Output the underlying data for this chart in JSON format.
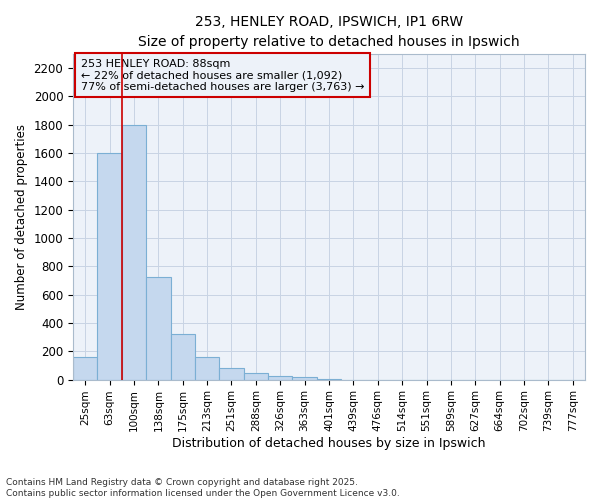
{
  "title_line1": "253, HENLEY ROAD, IPSWICH, IP1 6RW",
  "title_line2": "Size of property relative to detached houses in Ipswich",
  "xlabel": "Distribution of detached houses by size in Ipswich",
  "ylabel": "Number of detached properties",
  "categories": [
    "25sqm",
    "63sqm",
    "100sqm",
    "138sqm",
    "175sqm",
    "213sqm",
    "251sqm",
    "288sqm",
    "326sqm",
    "363sqm",
    "401sqm",
    "439sqm",
    "476sqm",
    "514sqm",
    "551sqm",
    "589sqm",
    "627sqm",
    "664sqm",
    "702sqm",
    "739sqm",
    "777sqm"
  ],
  "values": [
    160,
    1600,
    1800,
    725,
    320,
    160,
    85,
    50,
    28,
    15,
    5,
    0,
    0,
    0,
    0,
    0,
    0,
    0,
    0,
    0,
    0
  ],
  "bar_color": "#c5d8ee",
  "bar_edge_color": "#7bafd4",
  "vline_x_index": 1.5,
  "vline_color": "#cc0000",
  "annotation_text": "253 HENLEY ROAD: 88sqm\n← 22% of detached houses are smaller (1,092)\n77% of semi-detached houses are larger (3,763) →",
  "annotation_box_color": "#cc0000",
  "ylim": [
    0,
    2300
  ],
  "yticks": [
    0,
    200,
    400,
    600,
    800,
    1000,
    1200,
    1400,
    1600,
    1800,
    2000,
    2200
  ],
  "grid_color": "#c8d4e4",
  "bg_color": "#ffffff",
  "plot_bg_color": "#edf2f9",
  "footer_line1": "Contains HM Land Registry data © Crown copyright and database right 2025.",
  "footer_line2": "Contains public sector information licensed under the Open Government Licence v3.0."
}
